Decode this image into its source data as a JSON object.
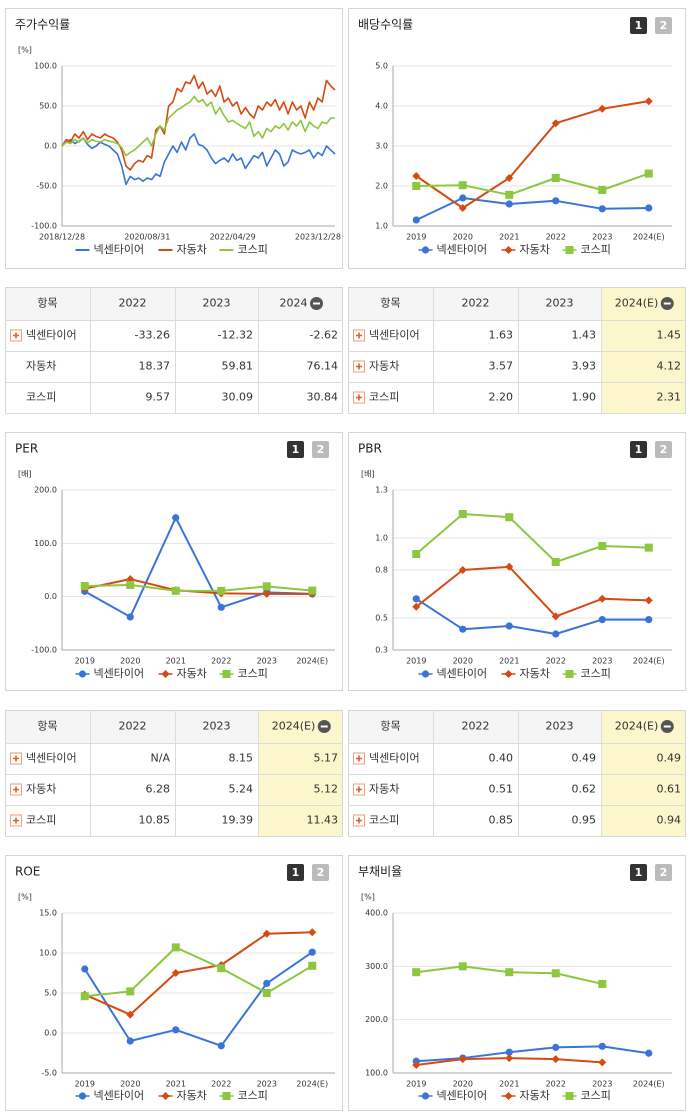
{
  "chart_data": [
    {
      "type": "line",
      "title": "주가수익률",
      "ylabel": "[%]",
      "markers": false,
      "grid": true,
      "legend": "bottom",
      "categories": [
        "2018/12/28",
        null,
        null,
        null,
        null,
        null,
        null,
        null,
        null,
        null,
        null,
        null,
        null,
        null,
        null,
        null,
        null,
        null,
        null,
        null,
        "2020/08/31",
        null,
        null,
        null,
        null,
        null,
        null,
        null,
        null,
        null,
        null,
        null,
        null,
        null,
        null,
        null,
        null,
        null,
        null,
        null,
        "2022/04/29",
        null,
        null,
        null,
        null,
        null,
        null,
        null,
        null,
        null,
        null,
        null,
        null,
        null,
        null,
        null,
        null,
        null,
        null,
        null,
        "2023/12/28",
        null,
        null,
        null,
        null
      ],
      "ylim": [
        -100,
        100
      ],
      "yticks": [
        {
          "value": -100,
          "label": "-100.0"
        },
        {
          "value": -50,
          "label": "-50.0"
        },
        {
          "value": 0,
          "label": "0.0"
        },
        {
          "value": 50,
          "label": "50.0"
        },
        {
          "value": 100,
          "label": "100.0"
        }
      ],
      "series": [
        {
          "name": "넥센타이어",
          "color": "#3a74d8",
          "values": [
            0,
            5,
            8,
            3,
            6,
            10,
            2,
            -3,
            0,
            5,
            2,
            0,
            -5,
            -10,
            -25,
            -48,
            -38,
            -42,
            -40,
            -44,
            -40,
            -42,
            -35,
            -38,
            -20,
            -10,
            0,
            -8,
            5,
            -5,
            10,
            15,
            2,
            0,
            -5,
            -15,
            -22,
            -18,
            -15,
            -20,
            -10,
            -18,
            -15,
            -28,
            -20,
            -12,
            -15,
            -8,
            -25,
            -15,
            -5,
            -10,
            -25,
            -20,
            -5,
            -8,
            -10,
            -8,
            -5,
            -15,
            -8,
            -12,
            0,
            -5,
            -10
          ]
        },
        {
          "name": "자동차",
          "color": "#d64a14",
          "values": [
            0,
            8,
            5,
            15,
            10,
            18,
            8,
            15,
            12,
            10,
            15,
            12,
            10,
            5,
            -5,
            -25,
            -30,
            -22,
            -18,
            -20,
            -12,
            -15,
            20,
            25,
            15,
            50,
            55,
            72,
            68,
            80,
            78,
            88,
            72,
            80,
            65,
            70,
            62,
            75,
            55,
            60,
            50,
            55,
            40,
            48,
            40,
            35,
            50,
            45,
            55,
            50,
            58,
            45,
            55,
            40,
            55,
            45,
            50,
            35,
            55,
            45,
            60,
            55,
            82,
            75,
            70
          ]
        },
        {
          "name": "코스피",
          "color": "#8dc63f",
          "values": [
            0,
            5,
            3,
            8,
            5,
            10,
            4,
            8,
            6,
            5,
            8,
            6,
            5,
            3,
            -2,
            -12,
            -8,
            -5,
            0,
            5,
            10,
            0,
            15,
            25,
            20,
            35,
            40,
            45,
            48,
            52,
            55,
            62,
            55,
            58,
            50,
            55,
            40,
            48,
            38,
            30,
            32,
            28,
            25,
            22,
            30,
            12,
            18,
            10,
            22,
            18,
            25,
            22,
            28,
            20,
            30,
            25,
            32,
            18,
            30,
            25,
            22,
            30,
            28,
            35,
            35
          ]
        }
      ]
    },
    {
      "type": "line",
      "title": "배당수익률",
      "pages": [
        "1",
        "2"
      ],
      "markers": true,
      "grid": true,
      "legend": "bottom",
      "categories": [
        "2019",
        "2020",
        "2021",
        "2022",
        "2023",
        "2024(E)"
      ],
      "ylim": [
        1,
        5
      ],
      "yticks": [
        {
          "value": 1,
          "label": "1.0"
        },
        {
          "value": 2,
          "label": "2.0"
        },
        {
          "value": 3,
          "label": "3.0"
        },
        {
          "value": 4,
          "label": "4.0"
        },
        {
          "value": 5,
          "label": "5.0"
        }
      ],
      "series": [
        {
          "name": "넥센타이어",
          "color": "#3a74d8",
          "marker": "circle",
          "values": [
            1.15,
            1.7,
            1.55,
            1.63,
            1.43,
            1.45
          ]
        },
        {
          "name": "자동차",
          "color": "#d64a14",
          "marker": "diamond",
          "values": [
            2.25,
            1.45,
            2.2,
            3.57,
            3.93,
            4.12
          ]
        },
        {
          "name": "코스피",
          "color": "#8dc63f",
          "marker": "square",
          "values": [
            2.0,
            2.02,
            1.78,
            2.2,
            1.9,
            2.31
          ]
        }
      ]
    },
    {
      "type": "line",
      "title": "PER",
      "ylabel": "[배]",
      "pages": [
        "1",
        "2"
      ],
      "markers": true,
      "grid": true,
      "legend": "bottom",
      "categories": [
        "2019",
        "2020",
        "2021",
        "2022",
        "2023",
        "2024(E)"
      ],
      "ylim": [
        -100,
        200
      ],
      "yticks": [
        {
          "value": -100,
          "label": "-100.0"
        },
        {
          "value": 0,
          "label": "0.0"
        },
        {
          "value": 100,
          "label": "100.0"
        },
        {
          "value": 200,
          "label": "200.0"
        }
      ],
      "series": [
        {
          "name": "넥센타이어",
          "color": "#3a74d8",
          "marker": "circle",
          "values": [
            10,
            -38,
            148,
            -20,
            8.15,
            5.17
          ]
        },
        {
          "name": "자동차",
          "color": "#d64a14",
          "marker": "diamond",
          "values": [
            15,
            33,
            12,
            6.28,
            5.24,
            5.12
          ]
        },
        {
          "name": "코스피",
          "color": "#8dc63f",
          "marker": "square",
          "values": [
            20,
            22,
            11,
            10.85,
            19.39,
            11.43
          ]
        }
      ]
    },
    {
      "type": "line",
      "title": "PBR",
      "ylabel": "[배]",
      "pages": [
        "1",
        "2"
      ],
      "markers": true,
      "grid": true,
      "legend": "bottom",
      "categories": [
        "2019",
        "2020",
        "2021",
        "2022",
        "2023",
        "2024(E)"
      ],
      "ylim": [
        0.3,
        1.3
      ],
      "yticks": [
        0.3,
        0.5,
        0.8,
        {
          "value": 1,
          "label": "1.0"
        },
        1.3
      ],
      "series": [
        {
          "name": "넥센타이어",
          "color": "#3a74d8",
          "marker": "circle",
          "values": [
            0.62,
            0.43,
            0.45,
            0.4,
            0.49,
            0.49
          ]
        },
        {
          "name": "자동차",
          "color": "#d64a14",
          "marker": "diamond",
          "values": [
            0.57,
            0.8,
            0.82,
            0.51,
            0.62,
            0.61
          ]
        },
        {
          "name": "코스피",
          "color": "#8dc63f",
          "marker": "square",
          "values": [
            0.9,
            1.15,
            1.13,
            0.85,
            0.95,
            0.94
          ]
        }
      ]
    },
    {
      "type": "line",
      "title": "ROE",
      "ylabel": "[%]",
      "pages": [
        "1",
        "2"
      ],
      "markers": true,
      "grid": true,
      "legend": "bottom",
      "categories": [
        "2019",
        "2020",
        "2021",
        "2022",
        "2023",
        "2024(E)"
      ],
      "ylim": [
        -5,
        15
      ],
      "yticks": [
        {
          "value": -5,
          "label": "-5.0"
        },
        {
          "value": 0,
          "label": "0.0"
        },
        {
          "value": 5,
          "label": "5.0"
        },
        {
          "value": 10,
          "label": "10.0"
        },
        {
          "value": 15,
          "label": "15.0"
        }
      ],
      "series": [
        {
          "name": "넥센타이어",
          "color": "#3a74d8",
          "marker": "circle",
          "values": [
            8.0,
            -1.0,
            0.4,
            -1.6,
            6.2,
            10.1
          ]
        },
        {
          "name": "자동차",
          "color": "#d64a14",
          "marker": "diamond",
          "values": [
            4.8,
            2.3,
            7.5,
            8.5,
            12.4,
            12.6
          ]
        },
        {
          "name": "코스피",
          "color": "#8dc63f",
          "marker": "square",
          "values": [
            4.6,
            5.2,
            10.7,
            8.1,
            5.0,
            8.4
          ]
        }
      ]
    },
    {
      "type": "line",
      "title": "부채비율",
      "ylabel": "[%]",
      "pages": [
        "1",
        "2"
      ],
      "markers": true,
      "grid": true,
      "legend": "bottom",
      "categories": [
        "2019",
        "2020",
        "2021",
        "2022",
        "2023",
        "2024(E)"
      ],
      "ylim": [
        100,
        400
      ],
      "yticks": [
        {
          "value": 100,
          "label": "100.0"
        },
        {
          "value": 200,
          "label": "200.0"
        },
        {
          "value": 300,
          "label": "300.0"
        },
        {
          "value": 400,
          "label": "400.0"
        }
      ],
      "series": [
        {
          "name": "넥센타이어",
          "color": "#3a74d8",
          "marker": "circle",
          "values": [
            122,
            128,
            139,
            148,
            150,
            137
          ]
        },
        {
          "name": "자동차",
          "color": "#d64a14",
          "marker": "diamond",
          "values": [
            115,
            126,
            128,
            126,
            120,
            null
          ]
        },
        {
          "name": "코스피",
          "color": "#8dc63f",
          "marker": "square",
          "values": [
            289,
            300,
            289,
            287,
            267,
            null
          ]
        }
      ]
    }
  ],
  "tables": [
    {
      "header": [
        "항목",
        "2022",
        "2023",
        "2024"
      ],
      "rows": [
        {
          "label": "넥센타이어",
          "values": [
            "-33.26",
            "-12.32",
            "-2.62"
          ]
        },
        {
          "label": "자동차",
          "values": [
            "18.37",
            "59.81",
            "76.14"
          ]
        },
        {
          "label": "코스피",
          "values": [
            "9.57",
            "30.09",
            "30.84"
          ]
        }
      ]
    },
    {
      "header": [
        "항목",
        "2022",
        "2023",
        "2024(E)"
      ],
      "highlight_color": "#fcf6cc",
      "rows": [
        {
          "label": "넥센타이어",
          "values": [
            "1.63",
            "1.43",
            "1.45"
          ]
        },
        {
          "label": "자동차",
          "values": [
            "3.57",
            "3.93",
            "4.12"
          ]
        },
        {
          "label": "코스피",
          "values": [
            "2.20",
            "1.90",
            "2.31"
          ]
        }
      ]
    },
    {
      "header": [
        "항목",
        "2022",
        "2023",
        "2024(E)"
      ],
      "highlight_color": "#fcf6cc",
      "rows": [
        {
          "label": "넥센타이어",
          "values": [
            "N/A",
            "8.15",
            "5.17"
          ]
        },
        {
          "label": "자동차",
          "values": [
            "6.28",
            "5.24",
            "5.12"
          ]
        },
        {
          "label": "코스피",
          "values": [
            "10.85",
            "19.39",
            "11.43"
          ]
        }
      ]
    },
    {
      "header": [
        "항목",
        "2022",
        "2023",
        "2024(E)"
      ],
      "highlight_color": "#fcf6cc",
      "rows": [
        {
          "label": "넥센타이어",
          "values": [
            "0.40",
            "0.49",
            "0.49"
          ]
        },
        {
          "label": "자동차",
          "values": [
            "0.51",
            "0.62",
            "0.61"
          ]
        },
        {
          "label": "코스피",
          "values": [
            "0.85",
            "0.95",
            "0.94"
          ]
        }
      ]
    }
  ]
}
